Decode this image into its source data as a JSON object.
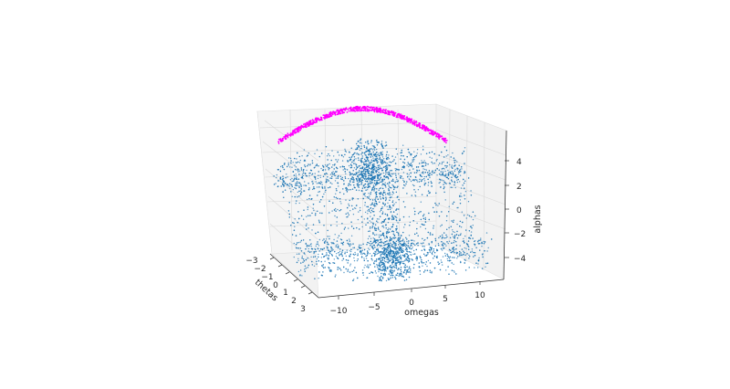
{
  "chart_data": {
    "type": "scatter",
    "projection": "3d",
    "title": "",
    "xlabel": "thetas",
    "ylabel": "omegas",
    "zlabel": "alphas",
    "xlim": [
      -3.3,
      3.3
    ],
    "ylim": [
      -13,
      13
    ],
    "zlim": [
      -5.5,
      5.5
    ],
    "xticks": [
      "−3",
      "−2",
      "−1",
      "0",
      "1",
      "2",
      "3"
    ],
    "yticks": [
      "−10",
      "−5",
      "0",
      "5",
      "10"
    ],
    "zticks": [
      "−4",
      "−2",
      "0",
      "2",
      "4"
    ],
    "grid": true,
    "legend": "none",
    "series": [
      {
        "marker": "dot",
        "color": "#1f77b4",
        "surface": "alpha ≈ −g·sin(theta) shaped cloud",
        "x_range": [
          -3.14,
          3.14
        ],
        "y_range": [
          -13,
          13
        ],
        "z_range": [
          -5,
          5
        ]
      },
      {
        "marker": "dot",
        "color": "#ff00ff",
        "note_x_range": [
          -3.14,
          3.14
        ],
        "z_value": 5
      }
    ],
    "colors": {
      "primary_points": "#1f77b4",
      "highlight_points": "#ff00ff"
    }
  }
}
